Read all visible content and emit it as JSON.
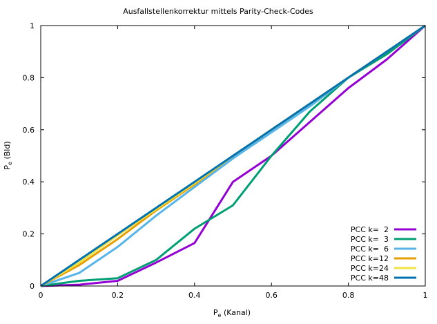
{
  "chart_data": {
    "type": "line",
    "title": "Ausfallstellenkorrektur mittels Parity-Check-Codes",
    "xlabel_main": "P",
    "xlabel_sub": "e",
    "xlabel_rest": " (Kanal)",
    "ylabel_main": "P",
    "ylabel_sub": "e",
    "ylabel_rest": " (Bld)",
    "xlim": [
      0,
      1
    ],
    "ylim": [
      0,
      1
    ],
    "xticks": [
      "0",
      "0.2",
      "0.4",
      "0.6",
      "0.8",
      "1"
    ],
    "yticks": [
      "0",
      "0.2",
      "0.4",
      "0.6",
      "0.8",
      "1"
    ],
    "legend_position": "bottom-right",
    "grid": false,
    "series": [
      {
        "name": "PCC k=  2",
        "color": "#9400d3",
        "x": [
          0,
          0.1,
          0.2,
          0.3,
          0.4,
          0.5,
          0.6,
          0.7,
          0.8,
          0.9,
          1
        ],
        "y": [
          0,
          0.005,
          0.02,
          0.09,
          0.165,
          0.4,
          0.5,
          0.63,
          0.76,
          0.87,
          1
        ]
      },
      {
        "name": "PCC k=  3",
        "color": "#009e73",
        "x": [
          0,
          0.1,
          0.2,
          0.3,
          0.4,
          0.5,
          0.6,
          0.7,
          0.8,
          0.9,
          1
        ],
        "y": [
          0,
          0.02,
          0.03,
          0.1,
          0.22,
          0.31,
          0.5,
          0.67,
          0.8,
          0.89,
          1
        ]
      },
      {
        "name": "PCC k=  6",
        "color": "#56b4e9",
        "x": [
          0,
          0.1,
          0.2,
          0.3,
          0.4,
          0.5,
          0.6,
          0.7,
          0.8,
          0.9,
          1
        ],
        "y": [
          0,
          0.05,
          0.15,
          0.27,
          0.38,
          0.49,
          0.59,
          0.69,
          0.8,
          0.9,
          1
        ]
      },
      {
        "name": "PCC k=12",
        "color": "#e69f00",
        "x": [
          0,
          0.1,
          0.2,
          0.3,
          0.4,
          0.5,
          0.6,
          0.7,
          0.8,
          0.9,
          1
        ],
        "y": [
          0,
          0.08,
          0.18,
          0.29,
          0.39,
          0.5,
          0.6,
          0.7,
          0.8,
          0.9,
          1
        ]
      },
      {
        "name": "PCC k=24",
        "color": "#f0e442",
        "x": [
          0,
          0.1,
          0.2,
          0.3,
          0.4,
          0.5,
          0.6,
          0.7,
          0.8,
          0.9,
          1
        ],
        "y": [
          0,
          0.09,
          0.195,
          0.295,
          0.395,
          0.5,
          0.6,
          0.7,
          0.8,
          0.9,
          1
        ]
      },
      {
        "name": "PCC k=48",
        "color": "#0072b2",
        "x": [
          0,
          0.1,
          0.2,
          0.3,
          0.4,
          0.5,
          0.6,
          0.7,
          0.8,
          0.9,
          1
        ],
        "y": [
          0,
          0.1,
          0.2,
          0.3,
          0.4,
          0.5,
          0.6,
          0.7,
          0.8,
          0.9,
          1
        ]
      }
    ]
  }
}
